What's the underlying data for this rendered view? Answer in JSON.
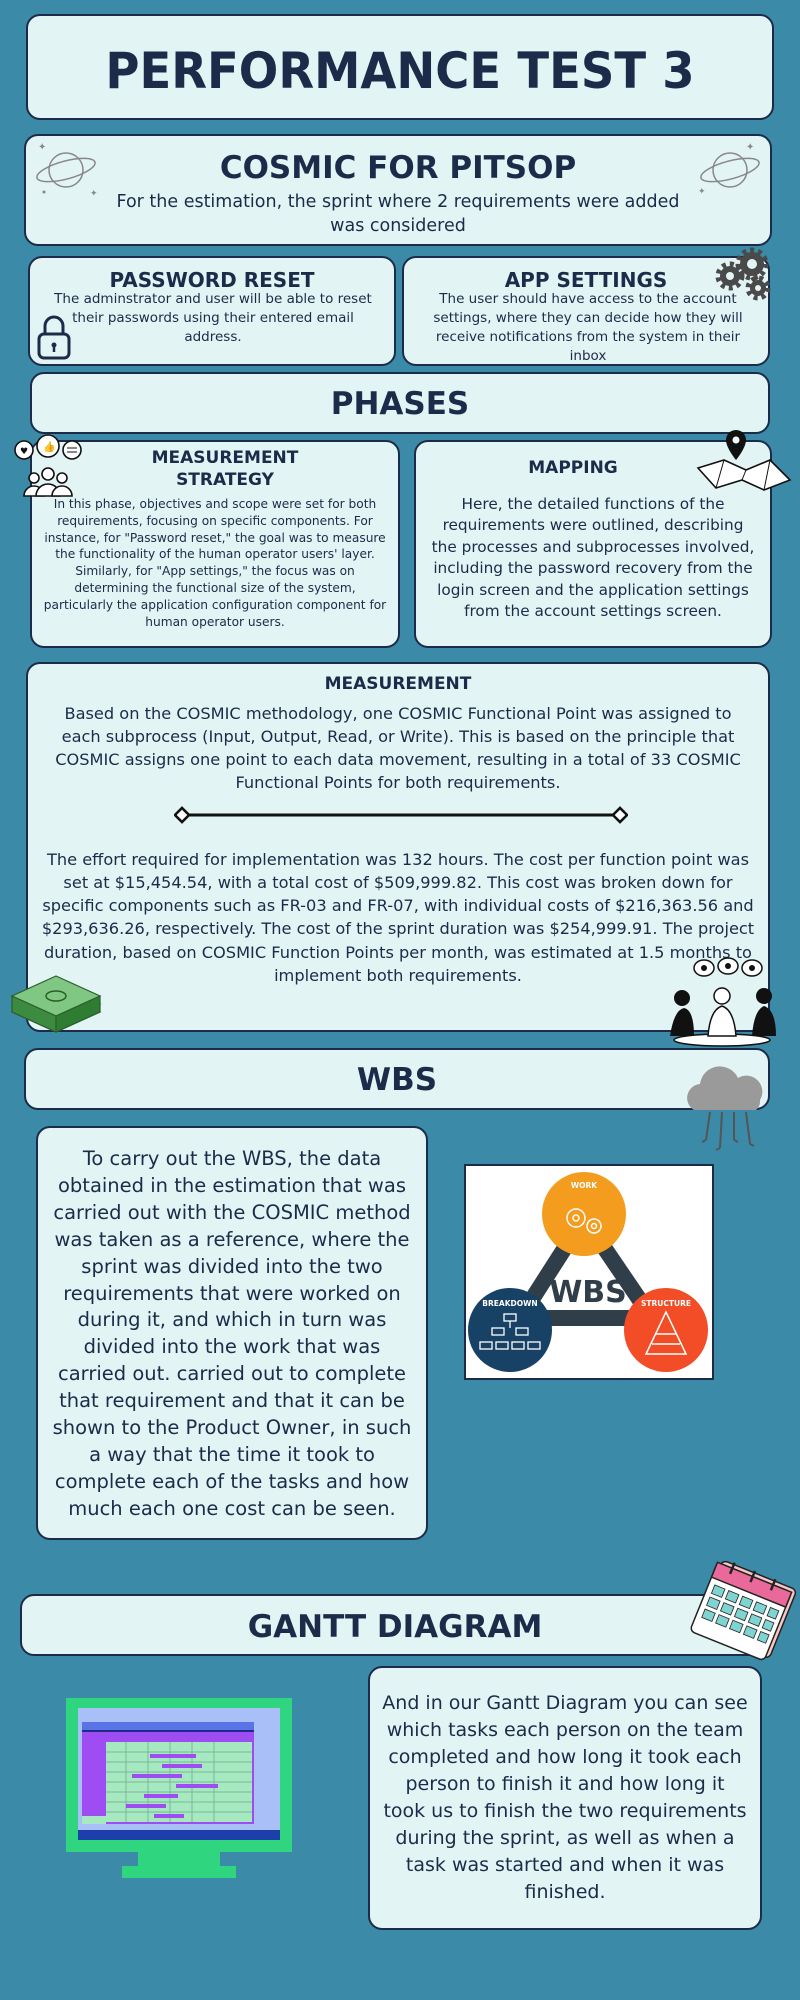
{
  "header": {
    "title": "PERFORMANCE TEST 3"
  },
  "cosmic": {
    "title": "COSMIC FOR PITSOP",
    "subtitle": "For the estimation, the sprint where 2 requirements were added was considered"
  },
  "requirements": {
    "password_reset": {
      "title": "PASSWORD RESET",
      "body": "The adminstrator and user will be able to reset their passwords using their entered email address."
    },
    "app_settings": {
      "title": "APP SETTINGS",
      "body": "The user should have access to the account settings, where they can decide how they will receive notifications from the system in their inbox"
    }
  },
  "phases": {
    "title": "PHASES",
    "measurement_strategy": {
      "title": "MEASUREMENT STRATEGY",
      "body": "In this phase, objectives and scope were set for both requirements, focusing on specific components. For instance, for \"Password reset,\" the goal was to measure the functionality of the human operator users' layer. Similarly, for \"App settings,\" the focus was on determining the functional size of the system, particularly the application configuration component for human operator users."
    },
    "mapping": {
      "title": "MAPPING",
      "body": "Here, the detailed functions of the requirements were outlined, describing the processes and subprocesses involved, including the password recovery from the login screen and the application settings from the account settings screen."
    }
  },
  "measurement": {
    "title": "MEASUREMENT",
    "paragraph1": "Based on the COSMIC methodology, one COSMIC Functional Point was assigned to each subprocess (Input, Output, Read, or Write). This is based on the principle that COSMIC assigns one point to each data movement, resulting in a total of 33 COSMIC Functional Points for both requirements.",
    "paragraph2": "The effort required for implementation was 132 hours. The cost per function point was set at $15,454.54, with a total cost of $509,999.82. This cost was broken down for specific components such as FR-03 and FR-07, with individual costs of $216,363.56 and $293,636.26, respectively. The cost of the sprint duration was $254,999.91. The project duration, based on COSMIC Function Points per month, was estimated at 1.5 months to implement both requirements."
  },
  "wbs": {
    "title": "WBS",
    "body": "To carry out the WBS, the data obtained in the estimation that was carried out with the COSMIC method was taken as a reference, where the sprint was divided into the two requirements that were worked on during it, and which in turn was divided into the work that was carried out. carried out to complete that requirement and that it can be shown to the Product Owner, in such a way that the time it took to complete each of the tasks and how much each one cost can be seen.",
    "diagram": {
      "center": "WBS",
      "work": "WORK",
      "breakdown": "BREAKDOWN",
      "structure": "STRUCTURE"
    }
  },
  "gantt": {
    "title": "GANTT DIAGRAM",
    "body": "And in our Gantt Diagram you can see which tasks each person on the team completed and how long it took each person to finish it and how long it took us to finish the two requirements during the sprint, as well as when a task was started and when it was finished."
  },
  "icons": [
    "planet-icon",
    "gears-icon",
    "padlock-icon",
    "feedback-people-icon",
    "map-pin-icon",
    "money-stack-icon",
    "team-discussion-icon",
    "rain-cloud-icon",
    "calendar-icon",
    "computer-monitor-icon"
  ],
  "colors": {
    "background": "#3b8aa8",
    "card": "#e2f4f3",
    "text": "#1c2b4a",
    "wbs_work": "#f39c1e",
    "wbs_breakdown": "#174266",
    "wbs_structure": "#f24d27"
  }
}
